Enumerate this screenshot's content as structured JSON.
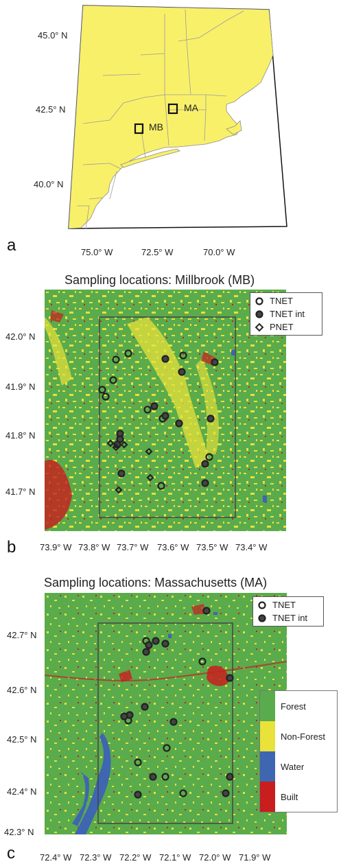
{
  "panel_a": {
    "letter": "a",
    "lat_labels": [
      "45.0° N",
      "42.5° N",
      "40.0° N"
    ],
    "lon_labels": [
      "75.0° W",
      "72.5° W",
      "70.0° W"
    ],
    "boxes": [
      {
        "label": "MA"
      },
      {
        "label": "MB"
      }
    ],
    "colors": {
      "land": "#f9f06a",
      "water": "#ffffff",
      "border": "#9a9a9a"
    }
  },
  "panel_b": {
    "letter": "b",
    "title": "Sampling locations: Millbrook (MB)",
    "lat_labels": [
      "42.0° N",
      "41.9° N",
      "41.8° N",
      "41.7° N"
    ],
    "lon_labels": [
      "73.9° W",
      "73.8° W",
      "73.7° W",
      "73.6° W",
      "73.5° W",
      "73.4° W"
    ],
    "legend": [
      {
        "symbol": "open-circle",
        "label": "TNET"
      },
      {
        "symbol": "filled-circle",
        "label": "TNET int"
      },
      {
        "symbol": "diamond",
        "label": "PNET"
      }
    ]
  },
  "panel_c": {
    "letter": "c",
    "title": "Sampling locations: Massachusetts (MA)",
    "lat_labels": [
      "42.7° N",
      "42.6° N",
      "42.5° N",
      "42.4° N",
      "42.3° N"
    ],
    "lon_labels": [
      "72.4° W",
      "72.3° W",
      "72.2° W",
      "72.1° W",
      "72.0° W",
      "71.9° W"
    ],
    "legend": [
      {
        "symbol": "open-circle",
        "label": "TNET"
      },
      {
        "symbol": "filled-circle",
        "label": "TNET int"
      }
    ],
    "landcover_legend": [
      {
        "label": "Forest",
        "color": "#5aab4c"
      },
      {
        "label": "Non-Forest",
        "color": "#e8e23a"
      },
      {
        "label": "Water",
        "color": "#3f66b0"
      },
      {
        "label": "Built",
        "color": "#c81e1e"
      }
    ]
  }
}
